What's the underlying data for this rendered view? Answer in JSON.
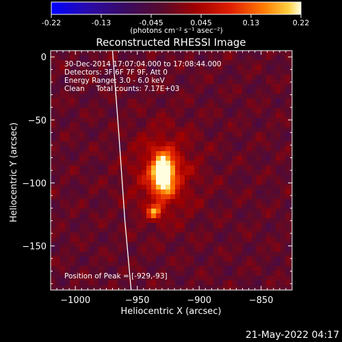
{
  "colorbar": {
    "ticks": [
      "-0.22",
      "-0.13",
      "-0.045",
      "0.045",
      "0.13",
      "0.22"
    ],
    "units": "(photons cm⁻² s⁻¹ asec⁻²)",
    "range": [
      -0.22,
      0.22
    ]
  },
  "chart_data": {
    "type": "heatmap",
    "title": "Reconstructed RHESSI Image",
    "xlabel": "Heliocentric X (arcsec)",
    "ylabel": "Heliocentric Y (arcsec)",
    "xlim": [
      -1020,
      -825
    ],
    "ylim": [
      -185,
      5
    ],
    "xticks": [
      {
        "v": -1000,
        "label": "−1000"
      },
      {
        "v": -950,
        "label": "−950"
      },
      {
        "v": -900,
        "label": "−900"
      },
      {
        "v": -850,
        "label": "−850"
      }
    ],
    "yticks": [
      {
        "v": 0,
        "label": "0"
      },
      {
        "v": -50,
        "label": "−50"
      },
      {
        "v": -100,
        "label": "−100"
      },
      {
        "v": -150,
        "label": "−150"
      }
    ],
    "annotations": [
      "30-Dec-2014 17:07:04.000 to 17:08:44.000",
      "Detectors: 3F 6F 7F 9F, Att 0",
      "Energy Range: 3.0 - 6.0 keV",
      "Clean     Total counts: 7.17E+03"
    ],
    "peak_label": "Position of Peak = [-929,-93]",
    "peak": {
      "x": -929,
      "y": -93,
      "value": 0.22
    },
    "secondary_source": {
      "x": -936,
      "y": -123
    },
    "limb": [
      [
        -970,
        5
      ],
      [
        -965,
        -60
      ],
      [
        -960,
        -130
      ],
      [
        -955,
        -185
      ]
    ]
  },
  "footer": {
    "timestamp": "21-May-2022 04:17"
  }
}
